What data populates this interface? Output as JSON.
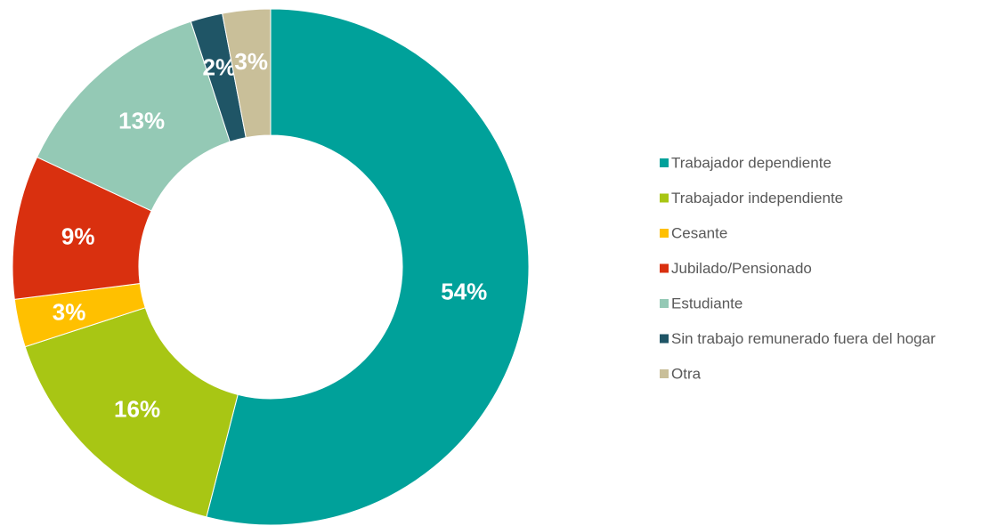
{
  "chart_data": {
    "type": "donut",
    "categories": [
      "Trabajador dependiente",
      "Trabajador independiente",
      "Cesante",
      "Jubilado/Pensionado",
      "Estudiante",
      "Sin trabajo remunerado fuera del hogar",
      "Otra"
    ],
    "values": [
      54,
      16,
      3,
      9,
      13,
      2,
      3
    ],
    "value_labels": [
      "54%",
      "16%",
      "3%",
      "9%",
      "13%",
      "2%",
      "3%"
    ],
    "colors": [
      "#00a19a",
      "#a8c614",
      "#ffc000",
      "#d9300f",
      "#94c9b5",
      "#1f5566",
      "#c9bf99"
    ],
    "legend": "right"
  }
}
